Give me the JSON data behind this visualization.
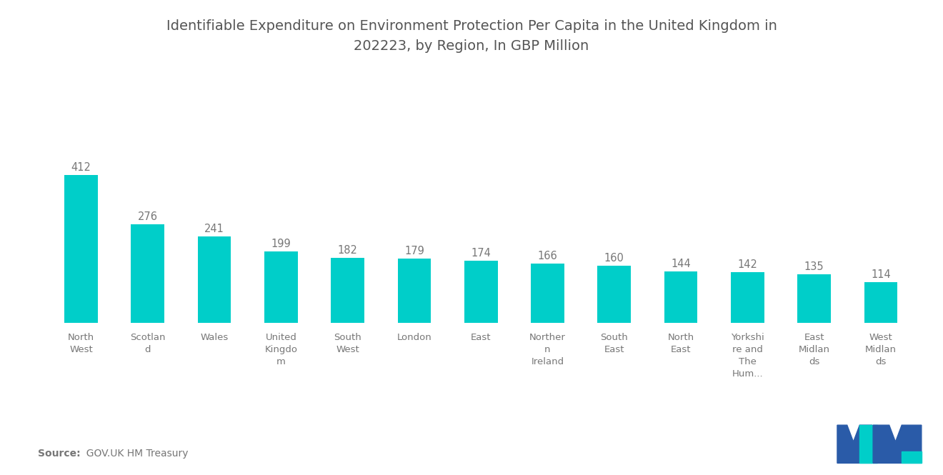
{
  "title": "Identifiable Expenditure on Environment Protection Per Capita in the United Kingdom in\n202223, by Region, In GBP Million",
  "categories": [
    "North\nWest",
    "Scotlan\nd",
    "Wales",
    "United\nKingdo\nm",
    "South\nWest",
    "London",
    "East",
    "Norther\nn\nIreland",
    "South\nEast",
    "North\nEast",
    "Yorkshi\nre and\nThe\nHum...",
    "East\nMidlan\nds",
    "West\nMidlan\nds"
  ],
  "values": [
    412,
    276,
    241,
    199,
    182,
    179,
    174,
    166,
    160,
    144,
    142,
    135,
    114
  ],
  "bar_color": "#00CEC9",
  "value_color": "#777777",
  "title_color": "#555555",
  "background_color": "#ffffff",
  "source_label": "Source:",
  "source_value": "  GOV.UK HM Treasury",
  "title_fontsize": 14,
  "label_fontsize": 9.5,
  "value_fontsize": 10.5,
  "source_fontsize": 10,
  "bar_width": 0.5,
  "ylim_max": 530,
  "logo_navy": "#2A5BA8",
  "logo_teal": "#00CEC9"
}
